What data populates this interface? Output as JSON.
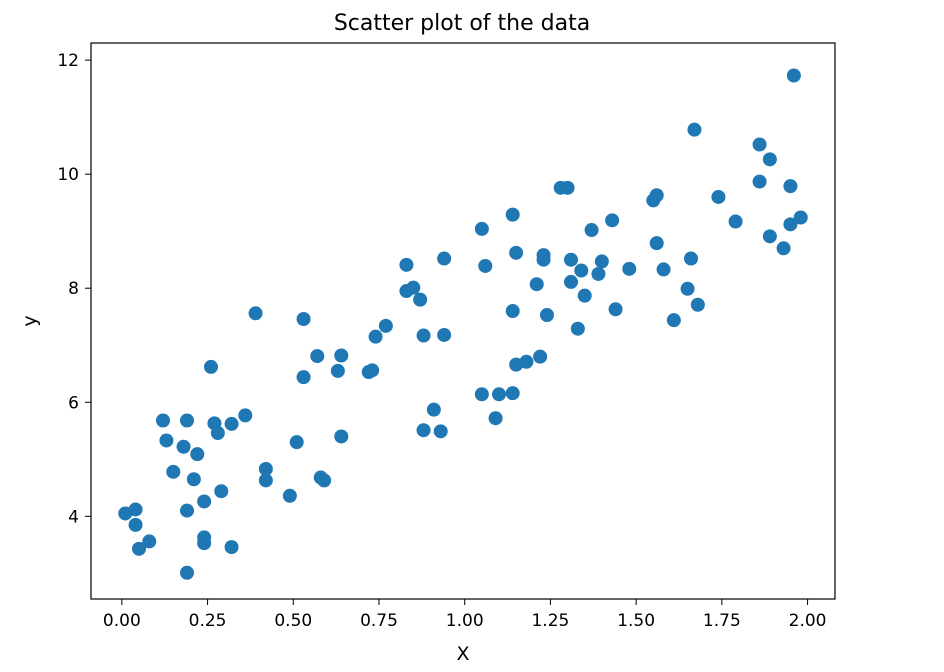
{
  "chart_data": {
    "type": "scatter",
    "title": "Scatter plot of the data",
    "xlabel": "X",
    "ylabel": "y",
    "xlim": [
      -0.09,
      2.08
    ],
    "ylim": [
      2.55,
      12.3
    ],
    "xticks": [
      0.0,
      0.25,
      0.5,
      0.75,
      1.0,
      1.25,
      1.5,
      1.75,
      2.0
    ],
    "xtick_labels": [
      "0.00",
      "0.25",
      "0.50",
      "0.75",
      "1.00",
      "1.25",
      "1.50",
      "1.75",
      "2.00"
    ],
    "yticks": [
      4,
      6,
      8,
      10,
      12
    ],
    "ytick_labels": [
      "4",
      "6",
      "8",
      "10",
      "12"
    ],
    "grid": false,
    "marker_color": "#1f77b4",
    "series": [
      {
        "points": [
          [
            0.01,
            4.05
          ],
          [
            0.04,
            4.12
          ],
          [
            0.04,
            3.85
          ],
          [
            0.05,
            3.43
          ],
          [
            0.08,
            3.56
          ],
          [
            0.12,
            5.68
          ],
          [
            0.13,
            5.33
          ],
          [
            0.15,
            4.78
          ],
          [
            0.18,
            5.22
          ],
          [
            0.19,
            3.01
          ],
          [
            0.19,
            4.1
          ],
          [
            0.19,
            5.68
          ],
          [
            0.21,
            4.65
          ],
          [
            0.22,
            5.09
          ],
          [
            0.24,
            4.26
          ],
          [
            0.24,
            3.63
          ],
          [
            0.24,
            3.53
          ],
          [
            0.26,
            6.62
          ],
          [
            0.27,
            5.63
          ],
          [
            0.28,
            5.46
          ],
          [
            0.29,
            4.44
          ],
          [
            0.32,
            3.46
          ],
          [
            0.32,
            5.62
          ],
          [
            0.36,
            5.77
          ],
          [
            0.39,
            7.56
          ],
          [
            0.42,
            4.83
          ],
          [
            0.42,
            4.63
          ],
          [
            0.49,
            4.36
          ],
          [
            0.51,
            5.3
          ],
          [
            0.53,
            7.46
          ],
          [
            0.53,
            6.44
          ],
          [
            0.57,
            6.81
          ],
          [
            0.58,
            4.68
          ],
          [
            0.59,
            4.63
          ],
          [
            0.63,
            6.55
          ],
          [
            0.64,
            6.82
          ],
          [
            0.64,
            5.4
          ],
          [
            0.72,
            6.53
          ],
          [
            0.73,
            6.56
          ],
          [
            0.74,
            7.15
          ],
          [
            0.77,
            7.34
          ],
          [
            0.83,
            8.41
          ],
          [
            0.83,
            7.95
          ],
          [
            0.85,
            8.01
          ],
          [
            0.87,
            7.8
          ],
          [
            0.88,
            7.17
          ],
          [
            0.88,
            5.51
          ],
          [
            0.91,
            5.87
          ],
          [
            0.93,
            5.49
          ],
          [
            0.94,
            7.18
          ],
          [
            0.94,
            8.52
          ],
          [
            1.05,
            9.04
          ],
          [
            1.05,
            6.14
          ],
          [
            1.06,
            8.39
          ],
          [
            1.09,
            5.72
          ],
          [
            1.1,
            6.14
          ],
          [
            1.14,
            6.16
          ],
          [
            1.14,
            9.29
          ],
          [
            1.14,
            7.6
          ],
          [
            1.15,
            6.66
          ],
          [
            1.15,
            8.62
          ],
          [
            1.18,
            6.71
          ],
          [
            1.21,
            8.07
          ],
          [
            1.22,
            6.8
          ],
          [
            1.23,
            8.58
          ],
          [
            1.23,
            8.5
          ],
          [
            1.24,
            7.53
          ],
          [
            1.28,
            9.76
          ],
          [
            1.3,
            9.76
          ],
          [
            1.31,
            8.5
          ],
          [
            1.31,
            8.11
          ],
          [
            1.33,
            7.29
          ],
          [
            1.34,
            8.31
          ],
          [
            1.35,
            7.87
          ],
          [
            1.37,
            9.02
          ],
          [
            1.39,
            8.25
          ],
          [
            1.4,
            8.47
          ],
          [
            1.43,
            9.19
          ],
          [
            1.44,
            7.63
          ],
          [
            1.48,
            8.34
          ],
          [
            1.55,
            9.54
          ],
          [
            1.56,
            8.79
          ],
          [
            1.56,
            9.63
          ],
          [
            1.58,
            8.33
          ],
          [
            1.61,
            7.44
          ],
          [
            1.65,
            7.99
          ],
          [
            1.66,
            8.52
          ],
          [
            1.67,
            10.78
          ],
          [
            1.68,
            7.71
          ],
          [
            1.74,
            9.6
          ],
          [
            1.79,
            9.17
          ],
          [
            1.86,
            10.52
          ],
          [
            1.86,
            9.87
          ],
          [
            1.89,
            10.26
          ],
          [
            1.89,
            8.91
          ],
          [
            1.93,
            8.7
          ],
          [
            1.95,
            9.79
          ],
          [
            1.95,
            9.12
          ],
          [
            1.96,
            11.73
          ],
          [
            1.98,
            9.24
          ]
        ]
      }
    ]
  }
}
